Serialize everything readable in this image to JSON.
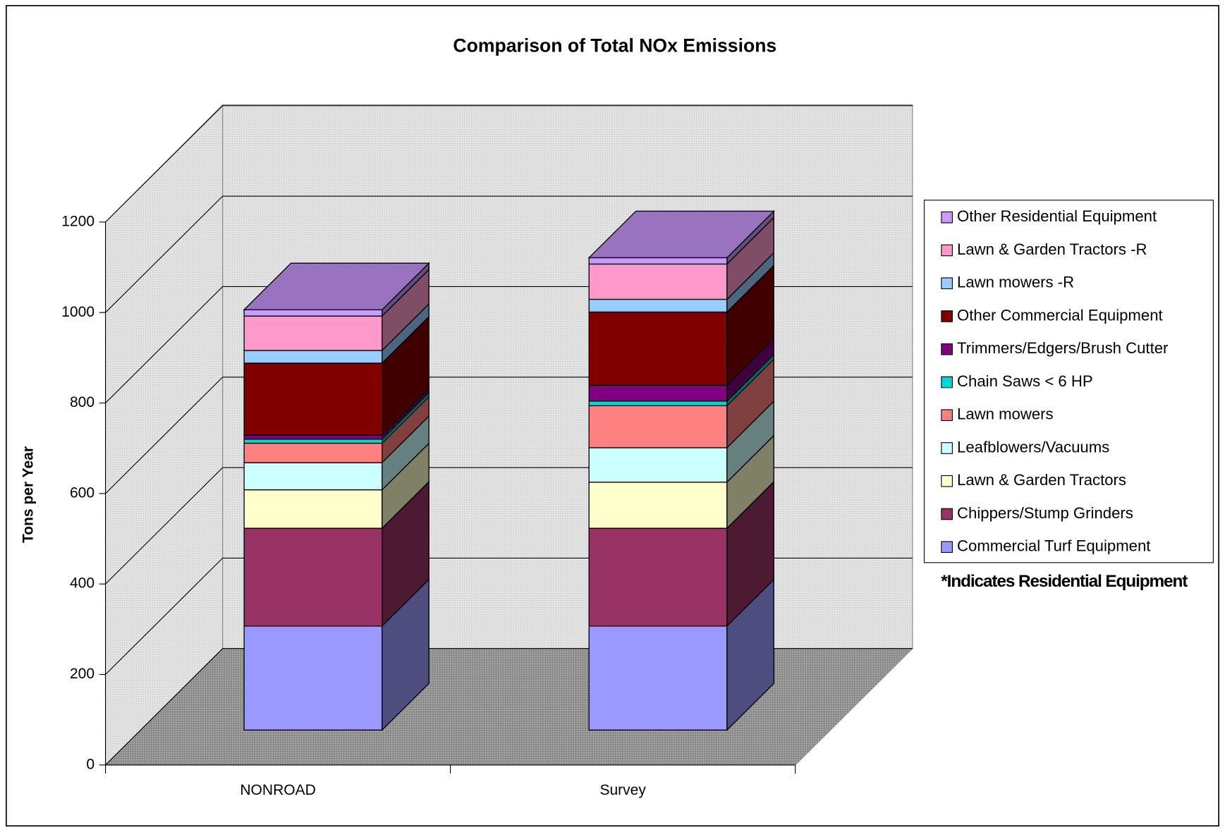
{
  "chart_data": {
    "type": "bar3d_stacked",
    "title": "Comparison of Total NOx Emissions",
    "y_label": "Tons per Year",
    "annotation": "*Indicates Residential Equipment",
    "categories": [
      "NONROAD",
      "Survey"
    ],
    "ylim": [
      0,
      1200
    ],
    "yticks": [
      0,
      200,
      400,
      600,
      800,
      1000,
      1200
    ],
    "grid": true,
    "legend": "right",
    "series": [
      {
        "name": "Commercial Turf Equipment",
        "color": "#9999ff",
        "values": [
          230,
          230
        ]
      },
      {
        "name": "Chippers/Stump Grinders",
        "color": "#993366",
        "values": [
          216,
          216
        ]
      },
      {
        "name": "Lawn & Garden Tractors",
        "color": "#ffffcc",
        "values": [
          85,
          102
        ]
      },
      {
        "name": "Leafblowers/Vacuums",
        "color": "#ccffff",
        "values": [
          60,
          76
        ]
      },
      {
        "name": "Lawn mowers",
        "color": "#ff8080",
        "values": [
          43,
          93
        ]
      },
      {
        "name": "Chain Saws < 6 HP",
        "color": "#00d8d8",
        "values": [
          9,
          10
        ]
      },
      {
        "name": "Trimmers/Edgers/Brush Cutter",
        "color": "#800080",
        "values": [
          9,
          35
        ]
      },
      {
        "name": "Other Commercial Equipment",
        "color": "#800000",
        "values": [
          159,
          162
        ]
      },
      {
        "name": "Lawn mowers -R",
        "color": "#99ccff",
        "values": [
          28,
          28
        ]
      },
      {
        "name": "Lawn & Garden Tractors -R",
        "color": "#ff99cc",
        "values": [
          76,
          78
        ]
      },
      {
        "name": "Other Residential Equipment",
        "color": "#cc99ff",
        "values": [
          14,
          14
        ]
      }
    ]
  }
}
